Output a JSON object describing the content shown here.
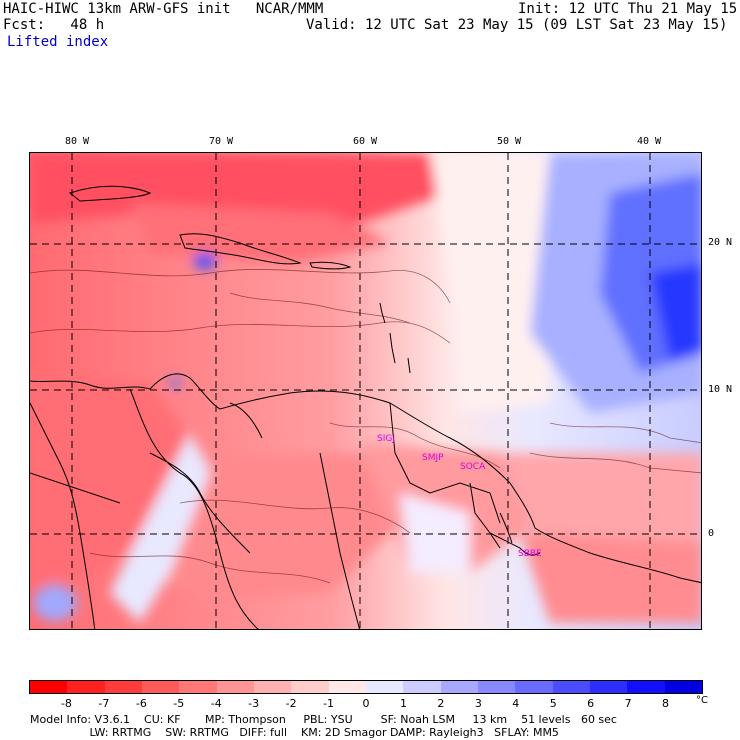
{
  "header": {
    "line1_left": "HAIC-HIWC 13km ARW-GFS init   NCAR/MMM",
    "line1_right": "Init: 12 UTC Thu 21 May 15",
    "line2_left": "Fcst:   48 h",
    "line2_right": "Valid: 12 UTC Sat 23 May 15 (09 LST Sat 23 May 15)",
    "field": "Lifted index"
  },
  "map": {
    "lon_labels": [
      "80 W",
      "70 W",
      "60 W",
      "50 W",
      "40 W"
    ],
    "lat_labels": [
      "20 N",
      "10 N",
      "0"
    ],
    "stations": [
      "SIGJ",
      "SMJP",
      "SOCA",
      "SBBE"
    ],
    "colors": {
      "warm_strong": "#ff4050",
      "warm_mid": "#ff8c90",
      "warm_light": "#ffc8c8",
      "neutral": "#fff2f2",
      "cool_light": "#d0d4ff",
      "cool_strong": "#3040ff",
      "station": "#e000e0"
    }
  },
  "colorbar": {
    "labels": [
      "-8",
      "-7",
      "-6",
      "-5",
      "-4",
      "-3",
      "-2",
      "-1",
      "0",
      "1",
      "2",
      "3",
      "4",
      "5",
      "6",
      "7",
      "8"
    ],
    "unit": "°C",
    "colors": [
      "#ff0000",
      "#ff2020",
      "#ff3c3c",
      "#ff5a5a",
      "#ff7878",
      "#ff9494",
      "#ffb0b0",
      "#ffcccc",
      "#ffe8e8",
      "#e8e8ff",
      "#ccccff",
      "#a8a8ff",
      "#8888ff",
      "#6a6aff",
      "#4c4cff",
      "#2e2eff",
      "#1010ff",
      "#0000e0"
    ]
  },
  "model_info": {
    "line1": "Model Info: V3.6.1    CU: KF       MP: Thompson     PBL: YSU        SF: Noah LSM     13 km    51 levels   60 sec",
    "line2": "                 LW: RRTMG    SW: RRTMG   DIFF: full    KM: 2D Smagor DAMP: Rayleigh3   SFLAY: MM5"
  }
}
